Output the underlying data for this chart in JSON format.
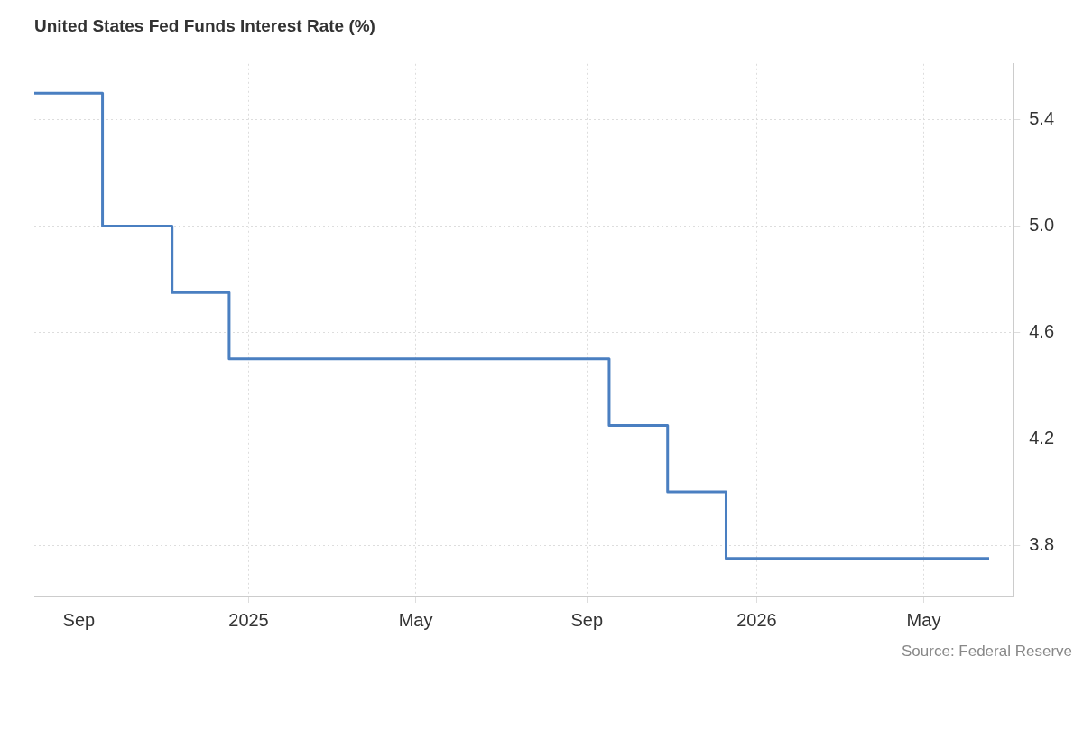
{
  "chart_data": {
    "type": "step",
    "title": "United States Fed Funds Interest Rate (%)",
    "x": [
      "2024-07-31",
      "2024-09-18",
      "2024-11-07",
      "2024-12-18",
      "2025-09-17",
      "2025-10-29",
      "2025-12-10",
      "2026-06-17"
    ],
    "series": [
      {
        "color": "#4a7fc1",
        "values": [
          5.5,
          5.0,
          4.75,
          4.5,
          4.25,
          4.0,
          3.75,
          3.75
        ]
      }
    ],
    "xlim": [
      "2024-07-31",
      "2026-07-04"
    ],
    "xticks": [
      {
        "value": "2024-09-01",
        "label": "Sep"
      },
      {
        "value": "2025-01-01",
        "label": "2025"
      },
      {
        "value": "2025-05-01",
        "label": "May"
      },
      {
        "value": "2025-09-01",
        "label": "Sep"
      },
      {
        "value": "2026-01-01",
        "label": "2026"
      },
      {
        "value": "2026-05-01",
        "label": "May"
      }
    ],
    "ylim": [
      3.61,
      5.61
    ],
    "yticks": [
      3.8,
      4.2,
      4.6,
      {
        "value": 5,
        "label": "5.0"
      },
      5.4
    ],
    "grid": true,
    "legend": false,
    "marker": "none",
    "line_style": "solid",
    "annotations": [
      "Source: Federal Reserve"
    ]
  }
}
